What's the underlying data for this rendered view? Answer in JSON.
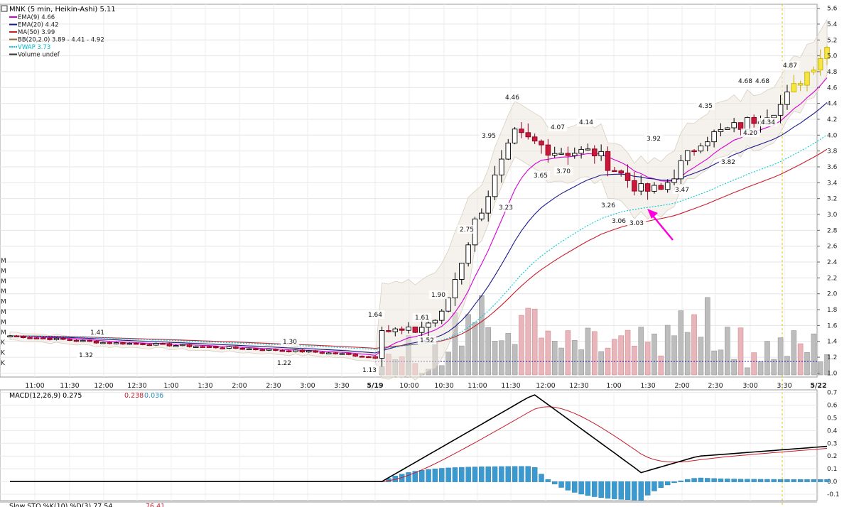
{
  "chart_data": [
    {
      "type": "candlestick",
      "title": "MNK (5 min, Heikin-Ashi) 5.11",
      "legend": [
        {
          "label": "EMA(9)",
          "value": "4.66",
          "color": "#d400d4"
        },
        {
          "label": "EMA(20)",
          "value": "4.42",
          "color": "#1a1a8c"
        },
        {
          "label": "MA(50)",
          "value": "3.99",
          "color": "#c81e2e"
        },
        {
          "label": "BB(20,2.0)",
          "value": "3.89 - 4.41 - 4.92",
          "color": "#8a6d3b"
        },
        {
          "label": "VWAP",
          "value": "3.73",
          "color": "#00c8d8"
        },
        {
          "label": "Volume",
          "value": "undef",
          "color": "#333333"
        }
      ],
      "ylim": [
        0.95,
        5.65
      ],
      "y_ticks": [
        "1.0",
        "1.2",
        "1.4",
        "1.6",
        "1.8",
        "2.0",
        "2.2",
        "2.4",
        "2.6",
        "2.8",
        "3.0",
        "3.2",
        "3.4",
        "3.6",
        "3.8",
        "4.0",
        "4.2",
        "4.4",
        "4.6",
        "4.8",
        "5.0",
        "5.2",
        "5.4",
        "5.6"
      ],
      "x_ticks": [
        "11:00",
        "11:30",
        "12:00",
        "12:30",
        "1:00",
        "1:30",
        "2:00",
        "2:30",
        "3:00",
        "3:30",
        "5/19",
        "10:00",
        "10:30",
        "11:00",
        "11:30",
        "12:00",
        "12:30",
        "1:00",
        "1:30",
        "2:00",
        "2:30",
        "3:00",
        "3:30",
        "5/22"
      ],
      "volume_axis_labels": [
        "M",
        "M",
        "M",
        "M",
        "M",
        "M",
        "M",
        "M",
        "K",
        "K",
        "K"
      ],
      "price_labels": [
        "1.41",
        "1.32",
        "1.30",
        "1.22",
        "1.13",
        "1.64",
        "1.61",
        "1.52",
        "1.90",
        "2.75",
        "3.23",
        "3.95",
        "4.46",
        "3.65",
        "4.07",
        "3.70",
        "4.14",
        "3.26",
        "3.06",
        "3.03",
        "3.92",
        "3.47",
        "4.35",
        "3.82",
        "4.68",
        "4.68",
        "4.20",
        "4.34",
        "4.87"
      ],
      "series": [
        {
          "name": "Close",
          "x": [
            "10:00",
            "10:30",
            "11:00",
            "11:30",
            "12:00",
            "12:30",
            "1:00",
            "1:30",
            "2:00",
            "2:30",
            "3:00",
            "3:30",
            "5/19",
            "10:00",
            "10:30",
            "11:00",
            "11:30",
            "12:00",
            "12:30",
            "1:00",
            "1:30",
            "2:00",
            "2:30",
            "3:00",
            "3:30"
          ],
          "values": [
            1.47,
            1.44,
            1.41,
            1.38,
            1.37,
            1.35,
            1.33,
            1.31,
            1.29,
            1.27,
            1.24,
            1.2,
            1.55,
            1.5,
            1.72,
            2.9,
            4.0,
            3.8,
            3.78,
            3.3,
            3.3,
            3.95,
            4.12,
            4.38,
            5.11
          ]
        }
      ]
    },
    {
      "type": "line",
      "title": "MACD(12,26,9)",
      "legend": [
        {
          "label": "MACD(12,26,9)",
          "value": "0.275",
          "color": "#000000"
        },
        {
          "label": "",
          "value": "0.238",
          "color": "#c81e2e"
        },
        {
          "label": "",
          "value": "0.036",
          "color": "#2a8fbf"
        }
      ],
      "ylim": [
        -0.15,
        0.72
      ],
      "y_ticks": [
        "0.7",
        "0.6",
        "0.5",
        "0.4",
        "0.3",
        "0.2",
        "0.1",
        "0.0",
        "-0.1"
      ]
    },
    {
      "type": "line",
      "title": "Slow STO %K(10) %D(3)",
      "legend": [
        {
          "label": "Slow STO %K(10) %D(3)",
          "value": "77.54",
          "color": "#000000"
        },
        {
          "label": "",
          "value": "76.41",
          "color": "#c81e2e"
        }
      ]
    }
  ]
}
